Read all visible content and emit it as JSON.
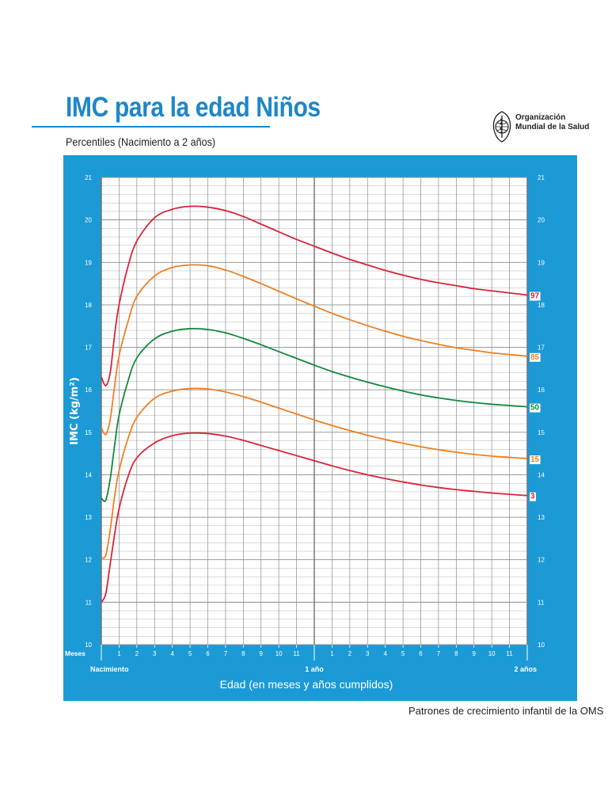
{
  "header": {
    "title": "IMC para la edad Niños",
    "subtitle": "Percentiles (Nacimiento a 2 años)",
    "logo": {
      "icon": "who-emblem-icon",
      "line1": "Organización",
      "line2": "Mundial de la Salud"
    }
  },
  "footer": {
    "text": "Patrones de crecimiento infantil de la OMS"
  },
  "colors": {
    "panel": "#1c9ad6",
    "grid_minor": "#b5b5b5",
    "grid_major": "#8c8c8c",
    "p97": "#d92438",
    "p85": "#ee8023",
    "p50": "#13883c",
    "p15": "#ee8023",
    "p3": "#d92438"
  },
  "chart_data": {
    "type": "line",
    "title": "IMC para la edad Niños",
    "subtitle": "Percentiles (Nacimiento a 2 años)",
    "ylabel": "IMC (kg/m²)",
    "xlabel": "Edad (en meses y años cumplidos)",
    "xlim": [
      0,
      24
    ],
    "ylim": [
      10,
      21
    ],
    "grid": true,
    "y_ticks": [
      10,
      11,
      12,
      13,
      14,
      15,
      16,
      17,
      18,
      19,
      20,
      21
    ],
    "x_month_prefix": "Meses",
    "x_month_ticks": [
      {
        "x": 1,
        "label": "1"
      },
      {
        "x": 2,
        "label": "2"
      },
      {
        "x": 3,
        "label": "3"
      },
      {
        "x": 4,
        "label": "4"
      },
      {
        "x": 5,
        "label": "5"
      },
      {
        "x": 6,
        "label": "6"
      },
      {
        "x": 7,
        "label": "7"
      },
      {
        "x": 8,
        "label": "8"
      },
      {
        "x": 9,
        "label": "9"
      },
      {
        "x": 10,
        "label": "10"
      },
      {
        "x": 11,
        "label": "11"
      },
      {
        "x": 13,
        "label": "1"
      },
      {
        "x": 14,
        "label": "2"
      },
      {
        "x": 15,
        "label": "3"
      },
      {
        "x": 16,
        "label": "4"
      },
      {
        "x": 17,
        "label": "5"
      },
      {
        "x": 18,
        "label": "6"
      },
      {
        "x": 19,
        "label": "7"
      },
      {
        "x": 20,
        "label": "8"
      },
      {
        "x": 21,
        "label": "9"
      },
      {
        "x": 22,
        "label": "10"
      },
      {
        "x": 23,
        "label": "11"
      }
    ],
    "x_year_ticks": [
      {
        "x": 0,
        "label": "Nacimiento"
      },
      {
        "x": 12,
        "label": "1 año"
      },
      {
        "x": 24,
        "label": "2 años"
      }
    ],
    "x": [
      0,
      0.25,
      0.5,
      0.75,
      1,
      1.5,
      2,
      3,
      4,
      5,
      6,
      7,
      8,
      9,
      10,
      11,
      12,
      13,
      14,
      15,
      16,
      17,
      18,
      19,
      20,
      21,
      22,
      23,
      24
    ],
    "series": [
      {
        "name": "97",
        "color_key": "p97",
        "values": [
          16.3,
          16.1,
          16.4,
          17.3,
          18.0,
          18.9,
          19.5,
          20.05,
          20.25,
          20.32,
          20.3,
          20.22,
          20.08,
          19.9,
          19.72,
          19.54,
          19.38,
          19.22,
          19.07,
          18.94,
          18.81,
          18.7,
          18.6,
          18.52,
          18.45,
          18.38,
          18.33,
          18.28,
          18.23
        ]
      },
      {
        "name": "85",
        "color_key": "p85",
        "values": [
          15.1,
          14.95,
          15.3,
          16.1,
          16.8,
          17.6,
          18.2,
          18.68,
          18.88,
          18.94,
          18.92,
          18.82,
          18.67,
          18.5,
          18.32,
          18.14,
          17.97,
          17.8,
          17.65,
          17.51,
          17.38,
          17.26,
          17.16,
          17.07,
          16.99,
          16.93,
          16.87,
          16.83,
          16.79
        ]
      },
      {
        "name": "50",
        "color_key": "p50",
        "values": [
          13.45,
          13.4,
          13.9,
          14.7,
          15.4,
          16.2,
          16.75,
          17.2,
          17.38,
          17.44,
          17.42,
          17.34,
          17.21,
          17.06,
          16.9,
          16.74,
          16.58,
          16.43,
          16.3,
          16.18,
          16.07,
          15.97,
          15.88,
          15.81,
          15.75,
          15.7,
          15.66,
          15.63,
          15.6
        ]
      },
      {
        "name": "15",
        "color_key": "p15",
        "values": [
          12.05,
          12.1,
          12.7,
          13.5,
          14.1,
          14.85,
          15.35,
          15.8,
          15.97,
          16.03,
          16.02,
          15.95,
          15.84,
          15.71,
          15.57,
          15.43,
          15.29,
          15.16,
          15.04,
          14.93,
          14.83,
          14.74,
          14.66,
          14.59,
          14.53,
          14.48,
          14.44,
          14.41,
          14.38
        ]
      },
      {
        "name": "3",
        "color_key": "p3",
        "values": [
          11.0,
          11.2,
          11.9,
          12.6,
          13.2,
          13.95,
          14.4,
          14.75,
          14.92,
          14.98,
          14.97,
          14.91,
          14.81,
          14.69,
          14.57,
          14.45,
          14.33,
          14.21,
          14.1,
          14.0,
          13.91,
          13.83,
          13.76,
          13.7,
          13.65,
          13.61,
          13.57,
          13.54,
          13.51
        ]
      }
    ]
  }
}
